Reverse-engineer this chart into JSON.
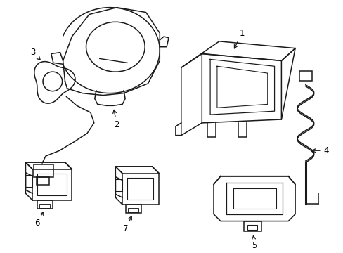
{
  "background_color": "#ffffff",
  "line_color": "#1a1a1a",
  "label_color": "#000000",
  "figsize": [
    4.89,
    3.6
  ],
  "dpi": 100,
  "labels": [
    "1",
    "2",
    "3",
    "4",
    "5",
    "6",
    "7"
  ]
}
